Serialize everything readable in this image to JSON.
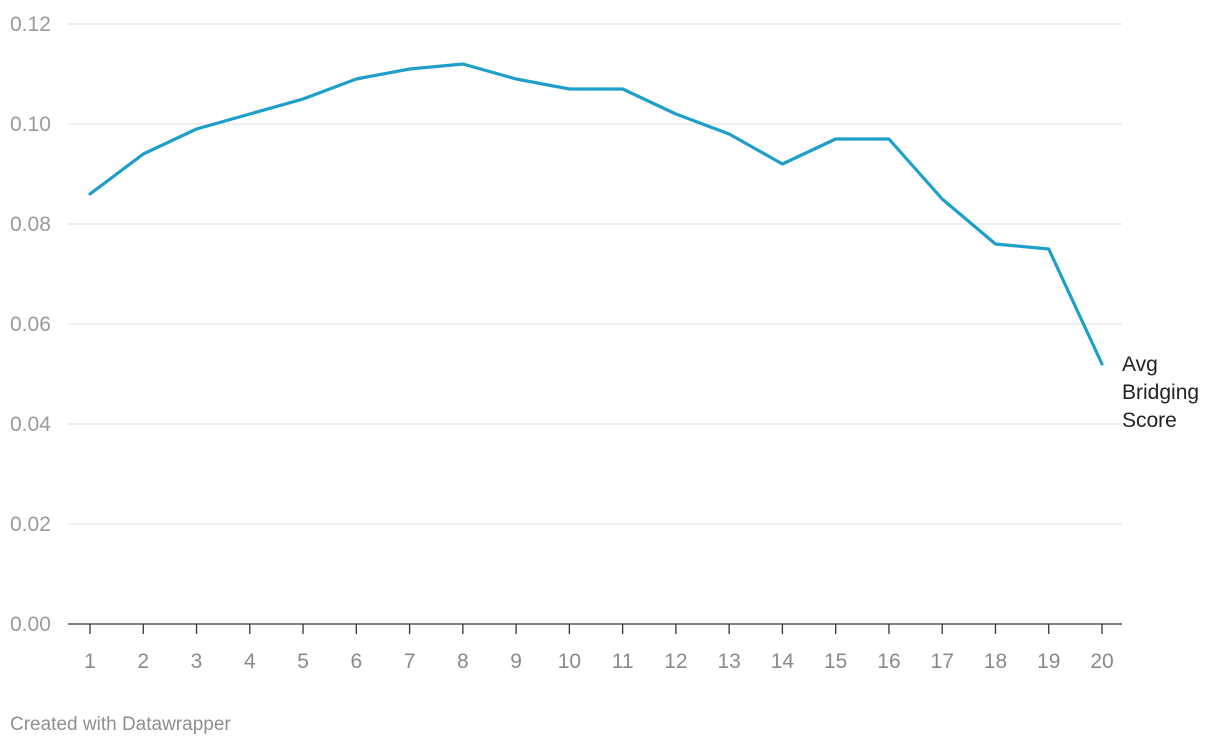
{
  "chart_data": {
    "type": "line",
    "x": [
      1,
      2,
      3,
      4,
      5,
      6,
      7,
      8,
      9,
      10,
      11,
      12,
      13,
      14,
      15,
      16,
      17,
      18,
      19,
      20
    ],
    "x_tick_labels": [
      "1",
      "2",
      "3",
      "4",
      "5",
      "6",
      "7",
      "8",
      "9",
      "10",
      "11",
      "12",
      "13",
      "14",
      "15",
      "16",
      "17",
      "18",
      "19",
      "20"
    ],
    "y_ticks": [
      0,
      0.02,
      0.04,
      0.06,
      0.08,
      0.1,
      0.12
    ],
    "y_tick_labels": [
      "0.00",
      "0.02",
      "0.04",
      "0.06",
      "0.08",
      "0.10",
      "0.12"
    ],
    "ylim": [
      0,
      0.12
    ],
    "grid": "horizontal",
    "series": [
      {
        "name": "Avg Bridging Score",
        "label_lines": [
          "Avg",
          "Bridging",
          "Score"
        ],
        "color": "#1d9fc9",
        "values": [
          0.086,
          0.094,
          0.099,
          0.102,
          0.105,
          0.109,
          0.111,
          0.112,
          0.109,
          0.107,
          0.107,
          0.102,
          0.098,
          0.092,
          0.097,
          0.097,
          0.085,
          0.076,
          0.075,
          0.052
        ]
      }
    ],
    "legend": "direct label at line end (right)"
  },
  "footer": {
    "credit": "Created with Datawrapper"
  }
}
